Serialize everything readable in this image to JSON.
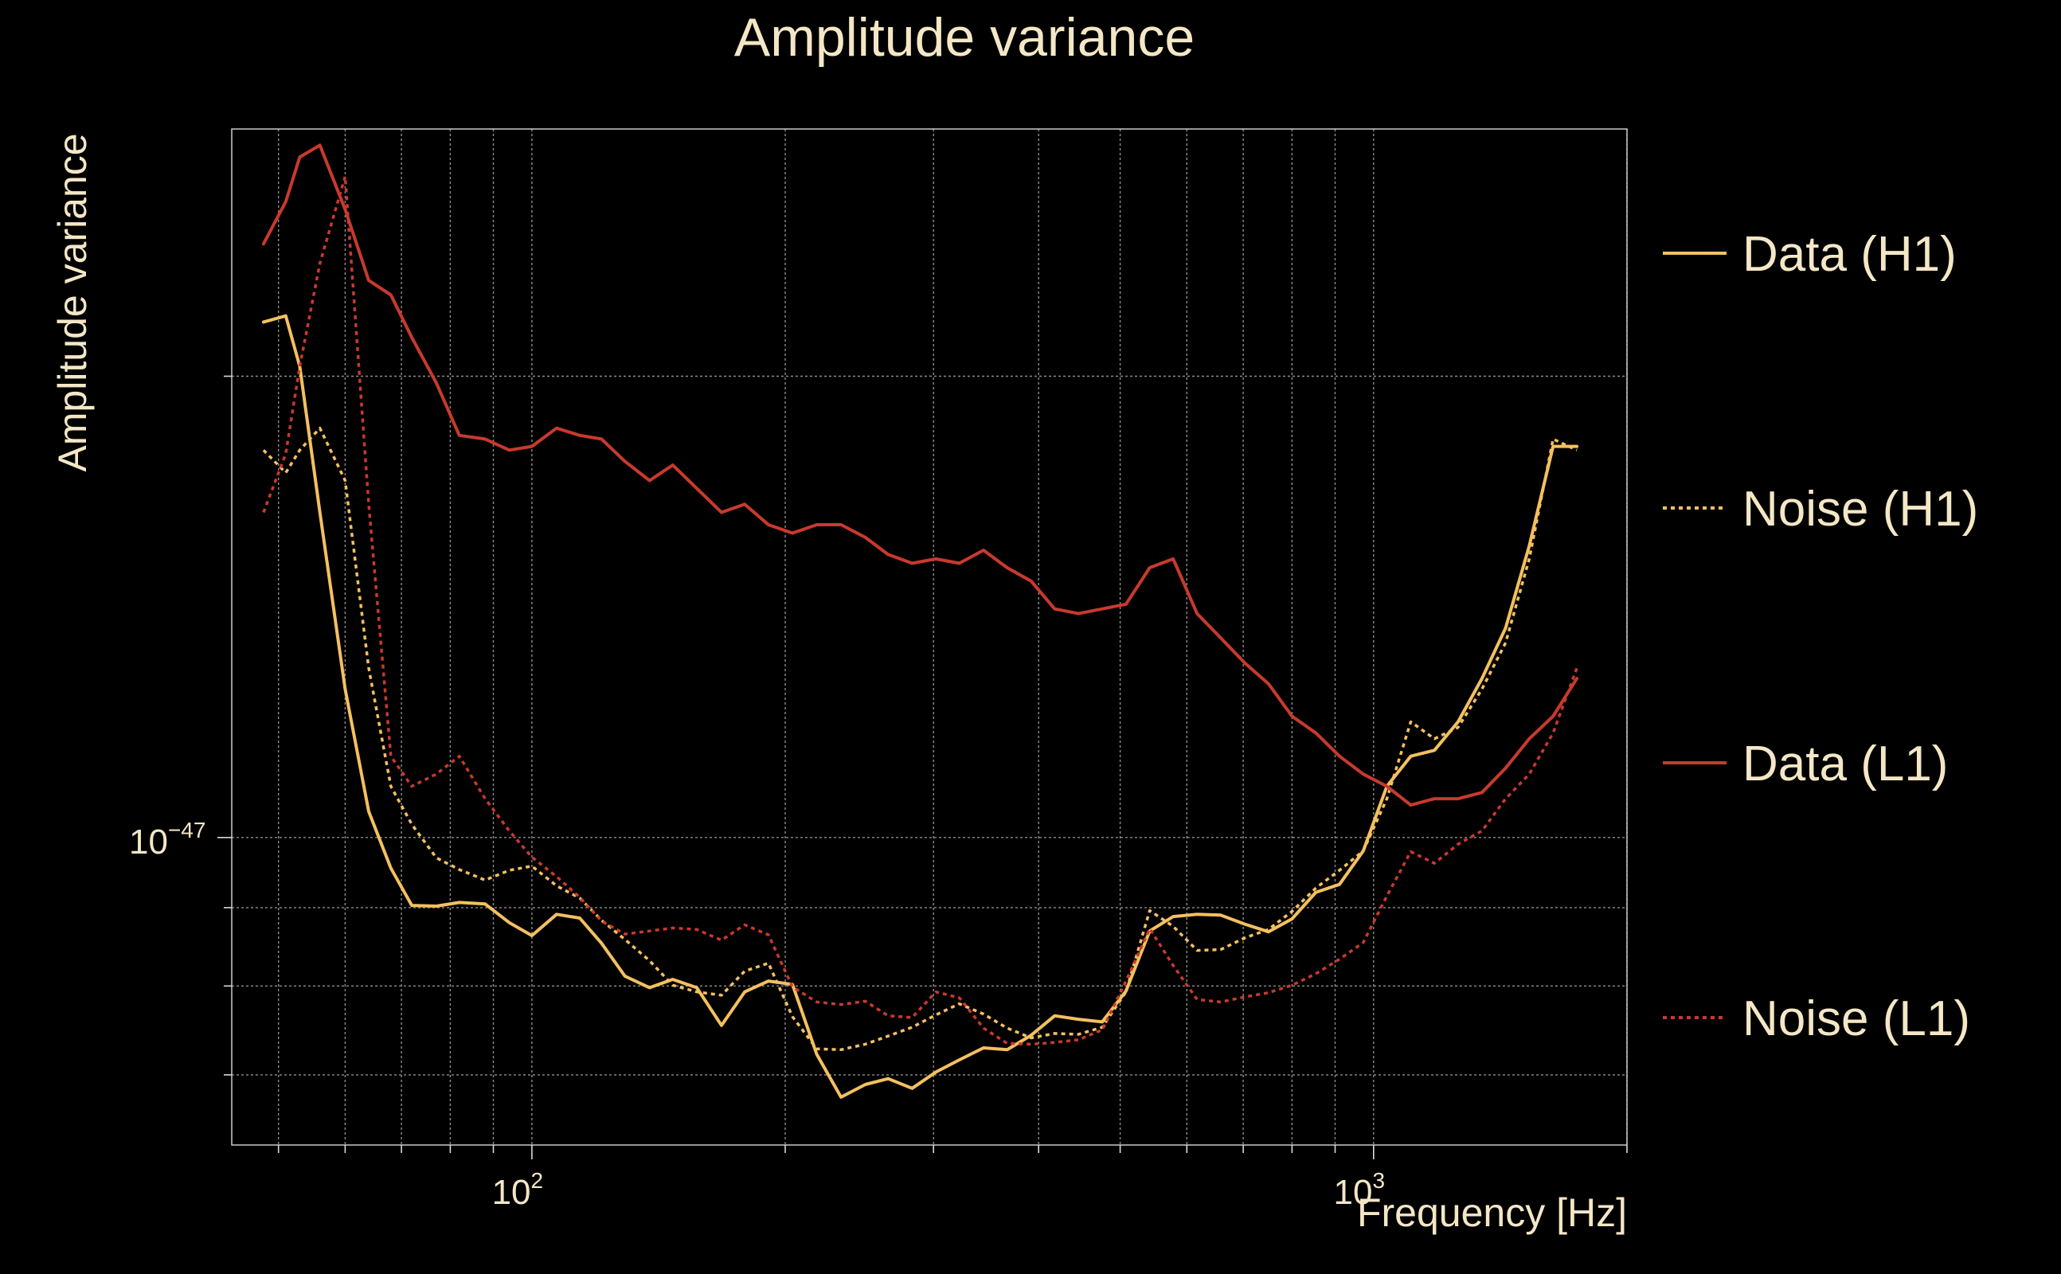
{
  "chart_data": {
    "type": "line",
    "title": "Amplitude variance",
    "xlabel": "Frequency [Hz]",
    "ylabel": "Amplitude variance",
    "x_scale": "log",
    "y_scale": "log",
    "xlim": [
      44,
      2000
    ],
    "ylim": [
      6.3e-48,
      2.9e-47
    ],
    "grid": true,
    "legend_position": "right",
    "x_ticks": [
      {
        "value": 100,
        "base": "10",
        "exp": "2"
      },
      {
        "value": 1000,
        "base": "10",
        "exp": "3"
      }
    ],
    "y_ticks": [
      {
        "value": 1e-47,
        "base": "10",
        "exp": "−47"
      }
    ],
    "x": [
      48,
      51,
      53,
      56,
      60,
      64,
      68,
      72,
      77,
      82,
      88,
      94,
      100,
      107,
      114,
      121,
      129,
      138,
      147,
      157,
      168,
      179,
      191,
      204,
      218,
      233,
      249,
      265,
      283,
      302,
      322,
      344,
      367,
      392,
      418,
      446,
      476,
      508,
      542,
      578,
      617,
      658,
      703,
      750,
      800,
      854,
      911,
      972,
      1037,
      1107,
      1181,
      1260,
      1345,
      1435,
      1531,
      1634,
      1744
    ],
    "series": [
      {
        "name": "Data (H1)",
        "color": "#f4c060",
        "dash": "solid",
        "values": [
          2.17e-47,
          2.19e-47,
          2.03e-47,
          1.63e-47,
          1.25e-47,
          1.04e-47,
          9.55e-48,
          9.03e-48,
          9.02e-48,
          9.07e-48,
          9.05e-48,
          8.8e-48,
          8.63e-48,
          8.91e-48,
          8.86e-48,
          8.53e-48,
          8.12e-48,
          7.98e-48,
          8.08e-48,
          7.98e-48,
          7.54e-48,
          7.93e-48,
          8.06e-48,
          8.02e-48,
          7.22e-48,
          6.77e-48,
          6.9e-48,
          6.96e-48,
          6.86e-48,
          7.03e-48,
          7.16e-48,
          7.29e-48,
          7.27e-48,
          7.43e-48,
          7.65e-48,
          7.61e-48,
          7.58e-48,
          7.94e-48,
          8.69e-48,
          8.88e-48,
          8.91e-48,
          8.9e-48,
          8.78e-48,
          8.68e-48,
          8.85e-48,
          9.21e-48,
          9.32e-48,
          9.8e-48,
          1.08e-47,
          1.13e-47,
          1.14e-47,
          1.19e-47,
          1.27e-47,
          1.37e-47,
          1.55e-47,
          1.8e-47,
          1.8e-47
        ]
      },
      {
        "name": "Noise (H1)",
        "color": "#f4c060",
        "dash": "dotted",
        "values": [
          1.79e-47,
          1.73e-47,
          1.79e-47,
          1.85e-47,
          1.71e-47,
          1.29e-47,
          1.08e-47,
          1.02e-47,
          9.7e-48,
          9.53e-48,
          9.38e-48,
          9.52e-48,
          9.58e-48,
          9.3e-48,
          9.13e-48,
          8.83e-48,
          8.58e-48,
          8.31e-48,
          8.01e-48,
          7.93e-48,
          7.89e-48,
          8.18e-48,
          8.28e-48,
          7.64e-48,
          7.28e-48,
          7.27e-48,
          7.33e-48,
          7.42e-48,
          7.52e-48,
          7.66e-48,
          7.79e-48,
          7.67e-48,
          7.51e-48,
          7.4e-48,
          7.45e-48,
          7.44e-48,
          7.52e-48,
          7.93e-48,
          8.96e-48,
          8.75e-48,
          8.44e-48,
          8.45e-48,
          8.6e-48,
          8.71e-48,
          8.95e-48,
          9.27e-48,
          9.52e-48,
          9.8e-48,
          1.06e-47,
          1.19e-47,
          1.16e-47,
          1.18e-47,
          1.25e-47,
          1.34e-47,
          1.52e-47,
          1.82e-47,
          1.79e-47
        ]
      },
      {
        "name": "Data (L1)",
        "color": "#c83a2d",
        "dash": "solid",
        "values": [
          2.44e-47,
          2.6e-47,
          2.78e-47,
          2.83e-47,
          2.57e-47,
          2.31e-47,
          2.26e-47,
          2.12e-47,
          1.98e-47,
          1.83e-47,
          1.82e-47,
          1.79e-47,
          1.8e-47,
          1.85e-47,
          1.83e-47,
          1.82e-47,
          1.76e-47,
          1.71e-47,
          1.75e-47,
          1.69e-47,
          1.63e-47,
          1.65e-47,
          1.6e-47,
          1.58e-47,
          1.6e-47,
          1.6e-47,
          1.57e-47,
          1.53e-47,
          1.51e-47,
          1.52e-47,
          1.51e-47,
          1.54e-47,
          1.5e-47,
          1.47e-47,
          1.41e-47,
          1.4e-47,
          1.41e-47,
          1.42e-47,
          1.5e-47,
          1.52e-47,
          1.4e-47,
          1.35e-47,
          1.3e-47,
          1.26e-47,
          1.2e-47,
          1.17e-47,
          1.13e-47,
          1.1e-47,
          1.08e-47,
          1.05e-47,
          1.06e-47,
          1.06e-47,
          1.07e-47,
          1.11e-47,
          1.16e-47,
          1.2e-47,
          1.27e-47
        ]
      },
      {
        "name": "Noise (L1)",
        "color": "#c83a2d",
        "dash": "dotted",
        "values": [
          1.63e-47,
          1.78e-47,
          2.03e-47,
          2.37e-47,
          2.7e-47,
          1.65e-47,
          1.13e-47,
          1.08e-47,
          1.1e-47,
          1.13e-47,
          1.06e-47,
          1.01e-47,
          9.71e-48,
          9.43e-48,
          9.14e-48,
          8.82e-48,
          8.65e-48,
          8.69e-48,
          8.73e-48,
          8.71e-48,
          8.57e-48,
          8.77e-48,
          8.64e-48,
          7.99e-48,
          7.81e-48,
          7.78e-48,
          7.82e-48,
          7.65e-48,
          7.63e-48,
          7.93e-48,
          7.86e-48,
          7.51e-48,
          7.34e-48,
          7.33e-48,
          7.35e-48,
          7.38e-48,
          7.49e-48,
          8.06e-48,
          8.72e-48,
          8.25e-48,
          7.84e-48,
          7.81e-48,
          7.87e-48,
          7.92e-48,
          8.01e-48,
          8.15e-48,
          8.33e-48,
          8.54e-48,
          9.16e-48,
          9.79e-48,
          9.62e-48,
          9.9e-48,
          1.01e-47,
          1.06e-47,
          1.1e-47,
          1.17e-47,
          1.29e-47
        ]
      }
    ]
  }
}
